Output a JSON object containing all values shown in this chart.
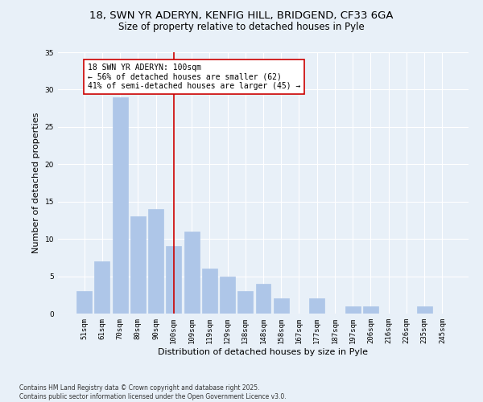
{
  "title_line1": "18, SWN YR ADERYN, KENFIG HILL, BRIDGEND, CF33 6GA",
  "title_line2": "Size of property relative to detached houses in Pyle",
  "xlabel": "Distribution of detached houses by size in Pyle",
  "ylabel": "Number of detached properties",
  "categories": [
    "51sqm",
    "61sqm",
    "70sqm",
    "80sqm",
    "90sqm",
    "100sqm",
    "109sqm",
    "119sqm",
    "129sqm",
    "138sqm",
    "148sqm",
    "158sqm",
    "167sqm",
    "177sqm",
    "187sqm",
    "197sqm",
    "206sqm",
    "216sqm",
    "226sqm",
    "235sqm",
    "245sqm"
  ],
  "values": [
    3,
    7,
    29,
    13,
    14,
    9,
    11,
    6,
    5,
    3,
    4,
    2,
    0,
    2,
    0,
    1,
    1,
    0,
    0,
    1,
    0
  ],
  "bar_color": "#aec6e8",
  "bar_edge_color": "#aec6e8",
  "vline_x_index": 5,
  "vline_color": "#cc0000",
  "annotation_text": "18 SWN YR ADERYN: 100sqm\n← 56% of detached houses are smaller (62)\n41% of semi-detached houses are larger (45) →",
  "annotation_box_color": "white",
  "annotation_box_edge_color": "#cc0000",
  "background_color": "#e8f0f8",
  "plot_bg_color": "#e8f0f8",
  "ylim": [
    0,
    35
  ],
  "yticks": [
    0,
    5,
    10,
    15,
    20,
    25,
    30,
    35
  ],
  "footer": "Contains HM Land Registry data © Crown copyright and database right 2025.\nContains public sector information licensed under the Open Government Licence v3.0.",
  "title_fontsize": 9.5,
  "subtitle_fontsize": 8.5,
  "tick_fontsize": 6.5,
  "label_fontsize": 8,
  "annotation_fontsize": 7,
  "footer_fontsize": 5.5
}
